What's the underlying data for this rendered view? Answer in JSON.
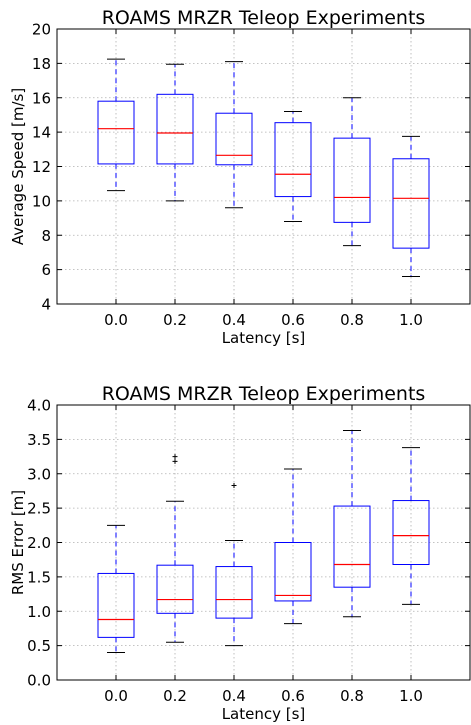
{
  "chart_data": [
    {
      "type": "box",
      "title": "ROAMS MRZR Teleop Experiments",
      "xlabel": "Latency [s]",
      "ylabel": "Average Speed [m/s]",
      "ylim": [
        4,
        20
      ],
      "yticks": [
        "4",
        "6",
        "8",
        "10",
        "12",
        "14",
        "16",
        "18",
        "20"
      ],
      "categories": [
        "0.0",
        "0.2",
        "0.4",
        "0.6",
        "0.8",
        "1.0"
      ],
      "grid": true,
      "boxes": [
        {
          "whislo": 10.6,
          "q1": 12.15,
          "med": 14.2,
          "q3": 15.8,
          "whishi": 18.25,
          "fliers": []
        },
        {
          "whislo": 10.0,
          "q1": 12.15,
          "med": 13.95,
          "q3": 16.2,
          "whishi": 17.95,
          "fliers": []
        },
        {
          "whislo": 9.6,
          "q1": 12.1,
          "med": 12.65,
          "q3": 15.1,
          "whishi": 18.1,
          "fliers": []
        },
        {
          "whislo": 8.8,
          "q1": 10.25,
          "med": 11.55,
          "q3": 14.55,
          "whishi": 15.2,
          "fliers": []
        },
        {
          "whislo": 7.4,
          "q1": 8.75,
          "med": 10.2,
          "q3": 13.65,
          "whishi": 16.0,
          "fliers": []
        },
        {
          "whislo": 5.6,
          "q1": 7.25,
          "med": 10.15,
          "q3": 12.45,
          "whishi": 13.75,
          "fliers": []
        }
      ]
    },
    {
      "type": "box",
      "title": "ROAMS MRZR Teleop Experiments",
      "xlabel": "Latency [s]",
      "ylabel": "RMS Error [m]",
      "ylim": [
        0,
        4
      ],
      "yticks": [
        "0.0",
        "0.5",
        "1.0",
        "1.5",
        "2.0",
        "2.5",
        "3.0",
        "3.5",
        "4.0"
      ],
      "categories": [
        "0.0",
        "0.2",
        "0.4",
        "0.6",
        "0.8",
        "1.0"
      ],
      "grid": true,
      "boxes": [
        {
          "whislo": 0.4,
          "q1": 0.62,
          "med": 0.88,
          "q3": 1.55,
          "whishi": 2.25,
          "fliers": []
        },
        {
          "whislo": 0.55,
          "q1": 0.97,
          "med": 1.17,
          "q3": 1.67,
          "whishi": 2.6,
          "fliers": [
            3.18,
            3.25
          ]
        },
        {
          "whislo": 0.5,
          "q1": 0.9,
          "med": 1.17,
          "q3": 1.65,
          "whishi": 2.03,
          "fliers": [
            2.83
          ]
        },
        {
          "whislo": 0.82,
          "q1": 1.15,
          "med": 1.23,
          "q3": 2.0,
          "whishi": 3.07,
          "fliers": []
        },
        {
          "whislo": 0.92,
          "q1": 1.35,
          "med": 1.68,
          "q3": 2.53,
          "whishi": 3.63,
          "fliers": []
        },
        {
          "whislo": 1.1,
          "q1": 1.68,
          "med": 2.1,
          "q3": 2.61,
          "whishi": 3.38,
          "fliers": []
        }
      ]
    }
  ],
  "colors": {
    "box": "#0000ff",
    "median": "#ff0000",
    "whisker": "#0000ff",
    "cap": "#000000",
    "grid": "#b0b0b0",
    "axis": "#000000"
  }
}
